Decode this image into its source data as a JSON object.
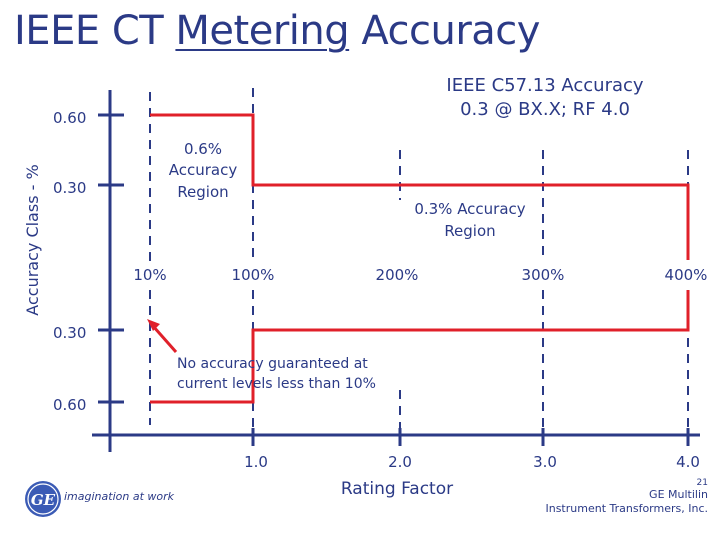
{
  "title": {
    "before": "IEEE CT ",
    "underlined": "Metering",
    "after": " Accuracy"
  },
  "subtitle": {
    "line1": "IEEE C57.13 Accuracy",
    "line2": "0.3 @ BX.X;   RF 4.0"
  },
  "y_axis": {
    "label": "Accuracy Class - %",
    "ticks_top": [
      "0.60",
      "0.30"
    ],
    "ticks_bottom": [
      "0.30",
      "0.60"
    ]
  },
  "current_labels": [
    "10%",
    "100%",
    "200%",
    "300%",
    "400%"
  ],
  "rating_ticks": [
    "1.0",
    "2.0",
    "3.0",
    "4.0"
  ],
  "x_axis_label": "Rating Factor",
  "annotations": {
    "region_06": [
      "0.6%",
      "Accuracy",
      "Region"
    ],
    "region_03": [
      "0.3% Accuracy",
      "Region"
    ],
    "no_accuracy": [
      "No accuracy guaranteed at",
      "current levels less than 10%"
    ]
  },
  "footer": {
    "page": "21",
    "company_line1": "GE Multilin",
    "company_line2": "Instrument Transformers, Inc.",
    "logo_mark": "GE",
    "logo_tagline": "imagination at work"
  },
  "colors": {
    "text": "#2b3a86",
    "axis": "#2b3a86",
    "region": "#e0202a"
  }
}
